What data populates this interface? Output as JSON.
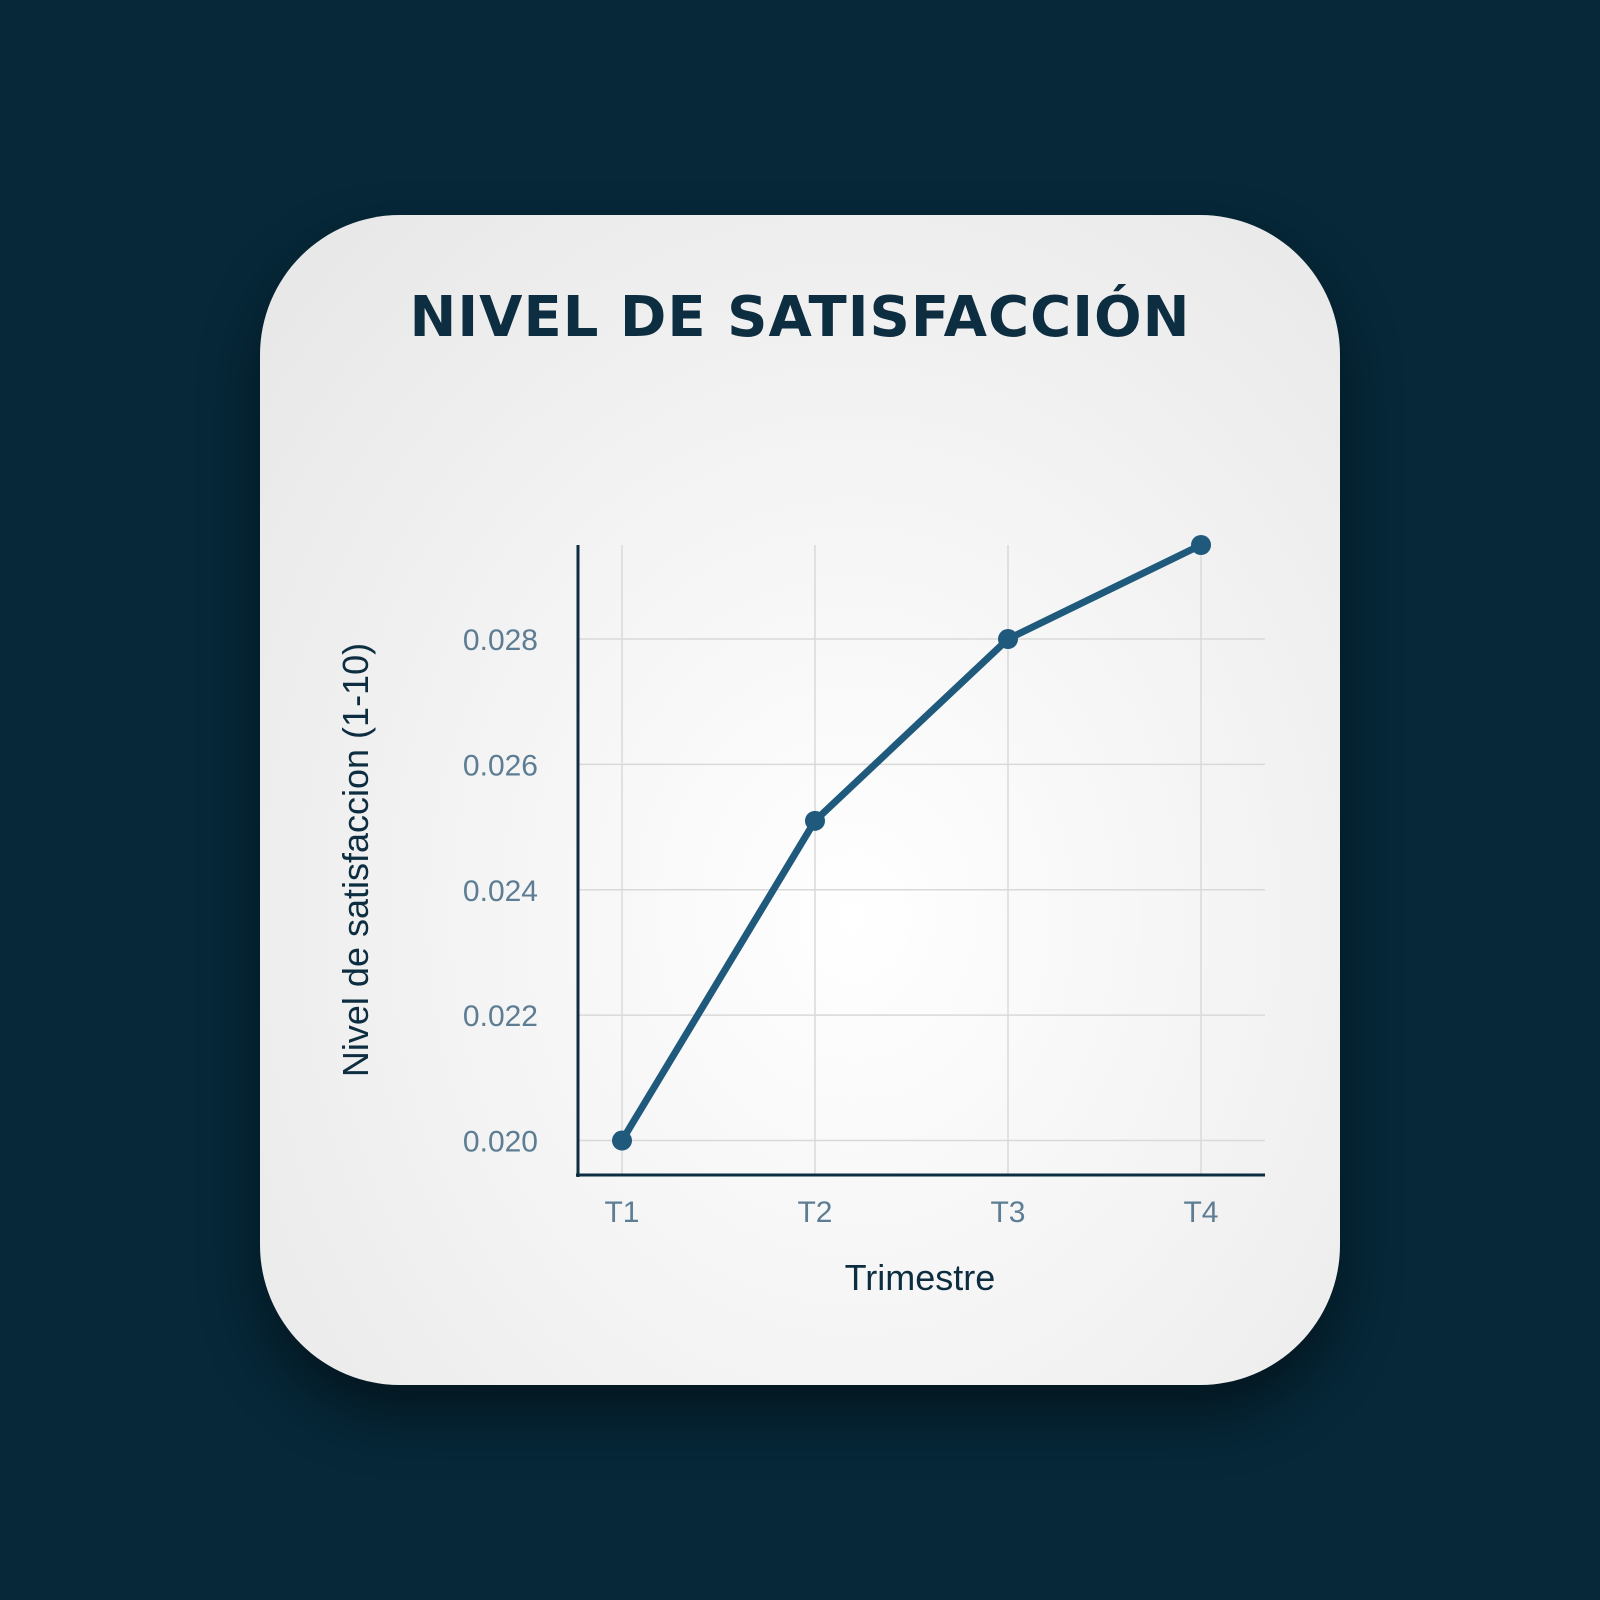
{
  "chart_data": {
    "type": "line",
    "title": "NIVEL DE SATISFACCIÓN",
    "xlabel": "Trimestre",
    "ylabel": "Nivel de satisfaccion (1-10)",
    "categories": [
      "T1",
      "T2",
      "T3",
      "T4"
    ],
    "series": [
      {
        "values": [
          0.02,
          0.0251,
          0.028,
          0.0295
        ]
      }
    ],
    "yticks": [
      "0.020",
      "0.022",
      "0.024",
      "0.026",
      "0.028"
    ],
    "ylim": [
      0.01945,
      0.0295
    ],
    "grid": true,
    "legend": "none",
    "colors": {
      "line": "#1f5a7d",
      "axis": "#0d2d40",
      "grid": "#d9d9d9",
      "background": "#062839",
      "card": "#f2f2f2"
    }
  }
}
